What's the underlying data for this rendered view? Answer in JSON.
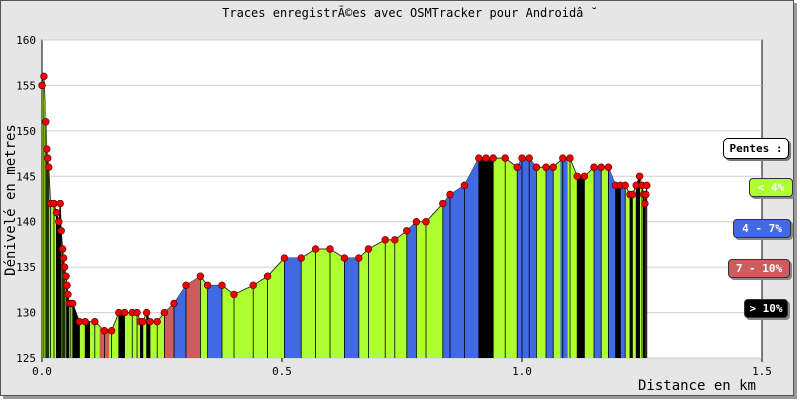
{
  "chart_data": {
    "type": "area",
    "title": "Traces enregistrÃ©es avec OSMTracker pour Androidâ ˘",
    "xlabel": "Distance en km",
    "ylabel": "Dénivelé en metres",
    "xlim": [
      0,
      1.5
    ],
    "ylim": [
      125,
      160
    ],
    "xticks": [
      "0.0",
      "0.5",
      "1.0",
      "1.5"
    ],
    "yticks": [
      "125",
      "130",
      "135",
      "140",
      "145",
      "150",
      "155",
      "160"
    ],
    "grid": true,
    "legend_title": "Pentes :",
    "legend_position": "right",
    "legend": [
      {
        "label": "< 4%",
        "color": "#adff2f"
      },
      {
        "label": "4 - 7%",
        "color": "#4169e1"
      },
      {
        "label": "7 - 10%",
        "color": "#cd5c5c"
      },
      {
        "label": "> 10%",
        "color": "#000000"
      }
    ],
    "points": [
      [
        0.0,
        155
      ],
      [
        0.004,
        156
      ],
      [
        0.008,
        151
      ],
      [
        0.01,
        148
      ],
      [
        0.012,
        147
      ],
      [
        0.014,
        146
      ],
      [
        0.018,
        142
      ],
      [
        0.025,
        142
      ],
      [
        0.03,
        141
      ],
      [
        0.035,
        140
      ],
      [
        0.038,
        142
      ],
      [
        0.04,
        139
      ],
      [
        0.043,
        137
      ],
      [
        0.045,
        136
      ],
      [
        0.047,
        135
      ],
      [
        0.05,
        134
      ],
      [
        0.052,
        133
      ],
      [
        0.054,
        132
      ],
      [
        0.056,
        131
      ],
      [
        0.06,
        131
      ],
      [
        0.064,
        131
      ],
      [
        0.078,
        129
      ],
      [
        0.09,
        129
      ],
      [
        0.11,
        129
      ],
      [
        0.13,
        128
      ],
      [
        0.145,
        128
      ],
      [
        0.16,
        130
      ],
      [
        0.172,
        130
      ],
      [
        0.188,
        130
      ],
      [
        0.198,
        130
      ],
      [
        0.205,
        129
      ],
      [
        0.21,
        129
      ],
      [
        0.218,
        130
      ],
      [
        0.225,
        129
      ],
      [
        0.24,
        129
      ],
      [
        0.255,
        130
      ],
      [
        0.275,
        131
      ],
      [
        0.3,
        133
      ],
      [
        0.33,
        134
      ],
      [
        0.345,
        133
      ],
      [
        0.375,
        133
      ],
      [
        0.4,
        132
      ],
      [
        0.44,
        133
      ],
      [
        0.47,
        134
      ],
      [
        0.505,
        136
      ],
      [
        0.54,
        136
      ],
      [
        0.57,
        137
      ],
      [
        0.6,
        137
      ],
      [
        0.63,
        136
      ],
      [
        0.66,
        136
      ],
      [
        0.68,
        137
      ],
      [
        0.715,
        138
      ],
      [
        0.735,
        138
      ],
      [
        0.76,
        139
      ],
      [
        0.78,
        140
      ],
      [
        0.8,
        140
      ],
      [
        0.835,
        142
      ],
      [
        0.85,
        143
      ],
      [
        0.88,
        144
      ],
      [
        0.91,
        147
      ],
      [
        0.925,
        147
      ],
      [
        0.94,
        147
      ],
      [
        0.965,
        147
      ],
      [
        0.99,
        146
      ],
      [
        1.0,
        147
      ],
      [
        1.015,
        147
      ],
      [
        1.03,
        146
      ],
      [
        1.05,
        146
      ],
      [
        1.065,
        146
      ],
      [
        1.085,
        147
      ],
      [
        1.1,
        147
      ],
      [
        1.115,
        145
      ],
      [
        1.13,
        145
      ],
      [
        1.15,
        146
      ],
      [
        1.165,
        146
      ],
      [
        1.18,
        146
      ],
      [
        1.195,
        144
      ],
      [
        1.205,
        144
      ],
      [
        1.215,
        144
      ],
      [
        1.225,
        143
      ],
      [
        1.23,
        143
      ],
      [
        1.238,
        144
      ],
      [
        1.245,
        145
      ],
      [
        1.25,
        144
      ],
      [
        1.253,
        143
      ],
      [
        1.256,
        142
      ],
      [
        1.258,
        143
      ],
      [
        1.26,
        144
      ]
    ],
    "slope_bands": [
      {
        "from": 0.0,
        "to": 0.012,
        "class": "< 4%"
      },
      {
        "from": 0.03,
        "to": 0.04,
        "class": "> 10%"
      },
      {
        "from": 0.052,
        "to": 0.056,
        "class": "> 10%"
      },
      {
        "from": 0.064,
        "to": 0.078,
        "class": "> 10%"
      },
      {
        "from": 0.09,
        "to": 0.1,
        "class": "> 10%"
      },
      {
        "from": 0.12,
        "to": 0.14,
        "class": "7 - 10%"
      },
      {
        "from": 0.16,
        "to": 0.172,
        "class": "> 10%"
      },
      {
        "from": 0.205,
        "to": 0.21,
        "class": "> 10%"
      },
      {
        "from": 0.218,
        "to": 0.225,
        "class": "> 10%"
      },
      {
        "from": 0.255,
        "to": 0.275,
        "class": "7 - 10%"
      },
      {
        "from": 0.275,
        "to": 0.3,
        "class": "4 - 7%"
      },
      {
        "from": 0.3,
        "to": 0.33,
        "class": "7 - 10%"
      },
      {
        "from": 0.345,
        "to": 0.375,
        "class": "4 - 7%"
      },
      {
        "from": 0.505,
        "to": 0.54,
        "class": "4 - 7%"
      },
      {
        "from": 0.63,
        "to": 0.66,
        "class": "4 - 7%"
      },
      {
        "from": 0.76,
        "to": 0.78,
        "class": "4 - 7%"
      },
      {
        "from": 0.835,
        "to": 0.91,
        "class": "4 - 7%"
      },
      {
        "from": 0.91,
        "to": 0.94,
        "class": "> 10%"
      },
      {
        "from": 0.99,
        "to": 1.03,
        "class": "4 - 7%"
      },
      {
        "from": 1.05,
        "to": 1.065,
        "class": "4 - 7%"
      },
      {
        "from": 1.08,
        "to": 1.095,
        "class": "4 - 7%"
      },
      {
        "from": 1.115,
        "to": 1.13,
        "class": "> 10%"
      },
      {
        "from": 1.15,
        "to": 1.165,
        "class": "4 - 7%"
      },
      {
        "from": 1.18,
        "to": 1.195,
        "class": "4 - 7%"
      },
      {
        "from": 1.195,
        "to": 1.205,
        "class": "> 10%"
      },
      {
        "from": 1.205,
        "to": 1.215,
        "class": "4 - 7%"
      },
      {
        "from": 1.225,
        "to": 1.23,
        "class": "> 10%"
      },
      {
        "from": 1.238,
        "to": 1.245,
        "class": "> 10%"
      },
      {
        "from": 1.253,
        "to": 1.256,
        "class": "> 10%"
      }
    ]
  }
}
